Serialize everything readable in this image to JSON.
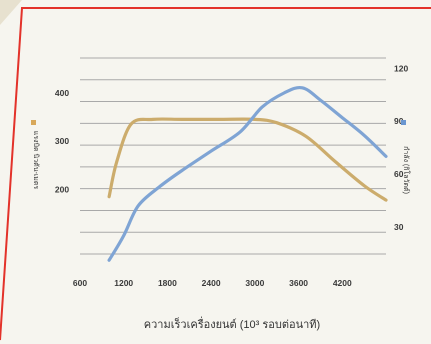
{
  "chart_data": {
    "type": "line",
    "title": "",
    "xlabel": "ความเร็วเครื่องยนต์ (10³ รอบต่อนาที)",
    "ylabel_left": "แรงบิด นิวตัน-เมตร",
    "ylabel_right": "กำลัง (กิโลวัตต์)",
    "xlim": [
      600,
      4800
    ],
    "ylim_left": [
      50,
      505
    ],
    "ylim_right": [
      10,
      135
    ],
    "x_ticks": [
      600,
      1200,
      1800,
      2400,
      3000,
      3600,
      4200
    ],
    "x_tick_labels": [
      "600",
      "1200",
      "1800",
      "2400",
      "3000",
      "3600",
      "4200"
    ],
    "y_left_ticks": [
      200,
      300,
      400
    ],
    "y_left_tick_labels": [
      "200",
      "300",
      "400"
    ],
    "y_right_ticks": [
      30,
      60,
      90,
      120
    ],
    "y_right_tick_labels": [
      "30",
      "60",
      "90",
      "120"
    ],
    "grid": true,
    "series": [
      {
        "name": "แรงบิด",
        "axis": "left",
        "color": "#ccac6c",
        "marker_color": "#d8a85a",
        "x": [
          1000,
          1100,
          1300,
          1600,
          2000,
          2500,
          3000,
          3300,
          3700,
          4100,
          4500,
          4800
        ],
        "values": [
          185,
          255,
          335,
          345,
          345,
          345,
          345,
          338,
          310,
          258,
          208,
          178
        ]
      },
      {
        "name": "กำลัง",
        "axis": "right",
        "color": "#7fa4d4",
        "marker_color": "#6a96d0",
        "x": [
          1000,
          1200,
          1400,
          1700,
          2000,
          2400,
          2800,
          3100,
          3400,
          3650,
          3900,
          4200,
          4500,
          4800
        ],
        "values": [
          11,
          25,
          42,
          53,
          62,
          73,
          84,
          98,
          106,
          109,
          102,
          92,
          82,
          70
        ]
      }
    ]
  }
}
